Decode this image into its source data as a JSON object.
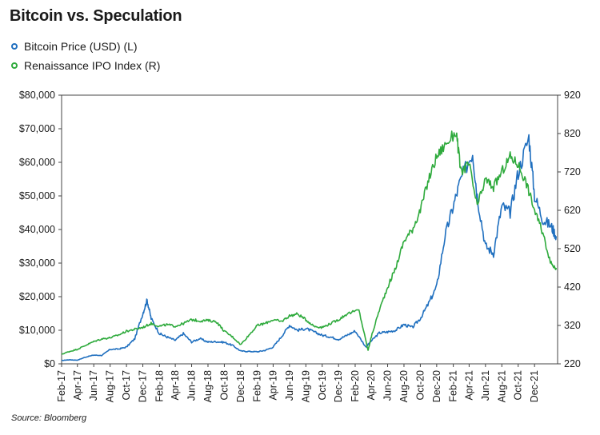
{
  "source": "Source: Bloomberg",
  "chart_data": {
    "type": "line",
    "title": "Bitcoin vs. Speculation",
    "legend_position": "top-left",
    "grid": false,
    "series": [
      {
        "name": "Bitcoin Price (USD) (L)",
        "axis": "left",
        "color": "#1f6fbf",
        "points": [
          [
            "2017-02-01",
            1000
          ],
          [
            "2017-03-01",
            1200
          ],
          [
            "2017-04-01",
            1100
          ],
          [
            "2017-05-01",
            2000
          ],
          [
            "2017-06-01",
            2600
          ],
          [
            "2017-07-01",
            2500
          ],
          [
            "2017-08-01",
            4300
          ],
          [
            "2017-09-01",
            4400
          ],
          [
            "2017-10-01",
            5000
          ],
          [
            "2017-11-01",
            7500
          ],
          [
            "2017-12-01",
            15000
          ],
          [
            "2017-12-17",
            19000
          ],
          [
            "2018-01-01",
            13500
          ],
          [
            "2018-02-01",
            9000
          ],
          [
            "2018-03-01",
            8000
          ],
          [
            "2018-04-01",
            7000
          ],
          [
            "2018-05-01",
            9000
          ],
          [
            "2018-06-01",
            6500
          ],
          [
            "2018-07-01",
            7500
          ],
          [
            "2018-08-01",
            6500
          ],
          [
            "2018-09-01",
            6600
          ],
          [
            "2018-10-01",
            6400
          ],
          [
            "2018-11-01",
            5500
          ],
          [
            "2018-12-01",
            3800
          ],
          [
            "2019-01-01",
            3700
          ],
          [
            "2019-02-01",
            3600
          ],
          [
            "2019-03-01",
            4000
          ],
          [
            "2019-04-01",
            5000
          ],
          [
            "2019-05-01",
            8000
          ],
          [
            "2019-06-01",
            11500
          ],
          [
            "2019-07-01",
            10000
          ],
          [
            "2019-08-01",
            10500
          ],
          [
            "2019-09-01",
            9500
          ],
          [
            "2019-10-01",
            8500
          ],
          [
            "2019-11-01",
            8000
          ],
          [
            "2019-12-01",
            7300
          ],
          [
            "2020-01-01",
            8500
          ],
          [
            "2020-02-01",
            9800
          ],
          [
            "2020-03-12",
            5000
          ],
          [
            "2020-04-01",
            6800
          ],
          [
            "2020-05-01",
            9200
          ],
          [
            "2020-06-01",
            9500
          ],
          [
            "2020-07-01",
            10000
          ],
          [
            "2020-08-01",
            11700
          ],
          [
            "2020-09-01",
            10800
          ],
          [
            "2020-10-01",
            13500
          ],
          [
            "2020-11-01",
            18000
          ],
          [
            "2020-12-01",
            23000
          ],
          [
            "2021-01-01",
            38000
          ],
          [
            "2021-02-01",
            47000
          ],
          [
            "2021-03-01",
            55000
          ],
          [
            "2021-04-14",
            63000
          ],
          [
            "2021-05-01",
            50000
          ],
          [
            "2021-06-01",
            35000
          ],
          [
            "2021-07-01",
            33000
          ],
          [
            "2021-08-01",
            47000
          ],
          [
            "2021-09-01",
            45000
          ],
          [
            "2021-10-01",
            57000
          ],
          [
            "2021-11-10",
            67500
          ],
          [
            "2021-12-01",
            50000
          ],
          [
            "2022-01-01",
            43000
          ],
          [
            "2022-02-01",
            41000
          ],
          [
            "2022-02-20",
            38000
          ]
        ]
      },
      {
        "name": "Renaissance IPO Index (R)",
        "axis": "right",
        "color": "#2eaa3c",
        "points": [
          [
            "2017-02-01",
            245
          ],
          [
            "2017-03-01",
            252
          ],
          [
            "2017-04-01",
            258
          ],
          [
            "2017-05-01",
            268
          ],
          [
            "2017-06-01",
            278
          ],
          [
            "2017-07-01",
            285
          ],
          [
            "2017-08-01",
            288
          ],
          [
            "2017-09-01",
            295
          ],
          [
            "2017-10-01",
            305
          ],
          [
            "2017-11-01",
            310
          ],
          [
            "2017-12-01",
            315
          ],
          [
            "2018-01-01",
            325
          ],
          [
            "2018-02-01",
            318
          ],
          [
            "2018-03-01",
            322
          ],
          [
            "2018-04-01",
            318
          ],
          [
            "2018-05-01",
            325
          ],
          [
            "2018-06-01",
            335
          ],
          [
            "2018-07-01",
            332
          ],
          [
            "2018-08-01",
            333
          ],
          [
            "2018-09-01",
            330
          ],
          [
            "2018-10-01",
            305
          ],
          [
            "2018-11-01",
            290
          ],
          [
            "2018-12-01",
            270
          ],
          [
            "2019-01-01",
            295
          ],
          [
            "2019-02-01",
            320
          ],
          [
            "2019-03-01",
            325
          ],
          [
            "2019-04-01",
            335
          ],
          [
            "2019-05-01",
            330
          ],
          [
            "2019-06-01",
            345
          ],
          [
            "2019-07-01",
            350
          ],
          [
            "2019-08-01",
            335
          ],
          [
            "2019-09-01",
            318
          ],
          [
            "2019-10-01",
            315
          ],
          [
            "2019-11-01",
            325
          ],
          [
            "2019-12-01",
            335
          ],
          [
            "2020-01-01",
            350
          ],
          [
            "2020-02-15",
            360
          ],
          [
            "2020-03-20",
            255
          ],
          [
            "2020-04-01",
            290
          ],
          [
            "2020-05-01",
            360
          ],
          [
            "2020-06-01",
            420
          ],
          [
            "2020-07-01",
            470
          ],
          [
            "2020-08-01",
            540
          ],
          [
            "2020-09-01",
            570
          ],
          [
            "2020-10-01",
            620
          ],
          [
            "2020-11-01",
            700
          ],
          [
            "2020-12-01",
            760
          ],
          [
            "2021-01-01",
            790
          ],
          [
            "2021-02-12",
            825
          ],
          [
            "2021-03-01",
            720
          ],
          [
            "2021-04-01",
            740
          ],
          [
            "2021-05-01",
            630
          ],
          [
            "2021-06-01",
            700
          ],
          [
            "2021-07-01",
            680
          ],
          [
            "2021-08-01",
            720
          ],
          [
            "2021-09-01",
            760
          ],
          [
            "2021-10-01",
            740
          ],
          [
            "2021-11-01",
            690
          ],
          [
            "2021-12-01",
            620
          ],
          [
            "2022-01-01",
            560
          ],
          [
            "2022-02-01",
            480
          ],
          [
            "2022-02-20",
            470
          ]
        ]
      }
    ],
    "x_range": [
      "2017-02-01",
      "2022-02-25"
    ],
    "x_ticks": [
      "Feb-17",
      "Apr-17",
      "Jun-17",
      "Aug-17",
      "Oct-17",
      "Dec-17",
      "Feb-18",
      "Apr-18",
      "Jun-18",
      "Aug-18",
      "Oct-18",
      "Dec-18",
      "Feb-19",
      "Apr-19",
      "Jun-19",
      "Aug-19",
      "Oct-19",
      "Dec-19",
      "Feb-20",
      "Apr-20",
      "Jun-20",
      "Aug-20",
      "Oct-20",
      "Dec-20",
      "Feb-21",
      "Apr-21",
      "Jun-21",
      "Aug-21",
      "Oct-21",
      "Dec-21"
    ],
    "y_left": {
      "ylim": [
        0,
        80000
      ],
      "ticks": [
        0,
        10000,
        20000,
        30000,
        40000,
        50000,
        60000,
        70000,
        80000
      ],
      "tick_labels": [
        "$0",
        "$10,000",
        "$20,000",
        "$30,000",
        "$40,000",
        "$50,000",
        "$60,000",
        "$70,000",
        "$80,000"
      ]
    },
    "y_right": {
      "ylim": [
        220,
        920
      ],
      "ticks": [
        220,
        320,
        420,
        520,
        620,
        720,
        820,
        920
      ],
      "tick_labels": [
        "220",
        "320",
        "420",
        "520",
        "620",
        "720",
        "820",
        "920"
      ]
    }
  }
}
